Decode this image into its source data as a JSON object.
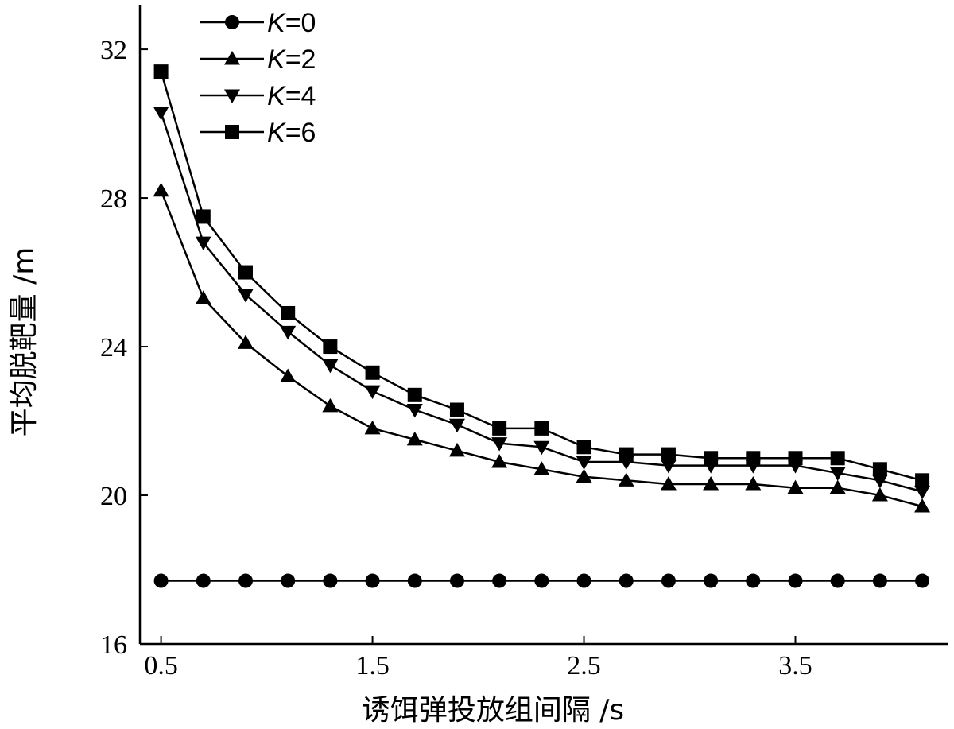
{
  "chart_data": {
    "type": "line",
    "title": "",
    "xlabel": "诱饵弹投放组间隔 /s",
    "ylabel": "平均脱靶量 /m",
    "xlim": [
      0.4,
      4.22
    ],
    "ylim": [
      16,
      33.2
    ],
    "x_ticks": [
      0.5,
      1.5,
      2.5,
      3.5
    ],
    "x_tick_labels": [
      "0.5",
      "1.5",
      "2.5",
      "3.5"
    ],
    "y_ticks": [
      16,
      20,
      24,
      28,
      32
    ],
    "y_tick_labels": [
      "16",
      "20",
      "24",
      "28",
      "32"
    ],
    "grid": false,
    "legend_position": "top-left",
    "x": [
      0.5,
      0.7,
      0.9,
      1.1,
      1.3,
      1.5,
      1.7,
      1.9,
      2.1,
      2.3,
      2.5,
      2.7,
      2.9,
      3.1,
      3.3,
      3.5,
      3.7,
      3.9,
      4.1
    ],
    "series": [
      {
        "name": "K=0",
        "name_italic": "K",
        "name_rest": "=0",
        "marker": "circle",
        "values": [
          17.7,
          17.7,
          17.7,
          17.7,
          17.7,
          17.7,
          17.7,
          17.7,
          17.7,
          17.7,
          17.7,
          17.7,
          17.7,
          17.7,
          17.7,
          17.7,
          17.7,
          17.7,
          17.7
        ]
      },
      {
        "name": "K=2",
        "name_italic": "K",
        "name_rest": "=2",
        "marker": "triangle-up",
        "values": [
          28.2,
          25.3,
          24.1,
          23.2,
          22.4,
          21.8,
          21.5,
          21.2,
          20.9,
          20.7,
          20.5,
          20.4,
          20.3,
          20.3,
          20.3,
          20.2,
          20.2,
          20.0,
          19.7
        ]
      },
      {
        "name": "K=4",
        "name_italic": "K",
        "name_rest": "=4",
        "marker": "triangle-down",
        "values": [
          30.3,
          26.8,
          25.4,
          24.4,
          23.5,
          22.8,
          22.3,
          21.9,
          21.4,
          21.3,
          20.9,
          20.9,
          20.8,
          20.8,
          20.8,
          20.8,
          20.6,
          20.4,
          20.1
        ]
      },
      {
        "name": "K=6",
        "name_italic": "K",
        "name_rest": "=6",
        "marker": "square",
        "values": [
          31.4,
          27.5,
          26.0,
          24.9,
          24.0,
          23.3,
          22.7,
          22.3,
          21.8,
          21.8,
          21.3,
          21.1,
          21.1,
          21.0,
          21.0,
          21.0,
          21.0,
          20.7,
          20.4
        ]
      }
    ]
  }
}
